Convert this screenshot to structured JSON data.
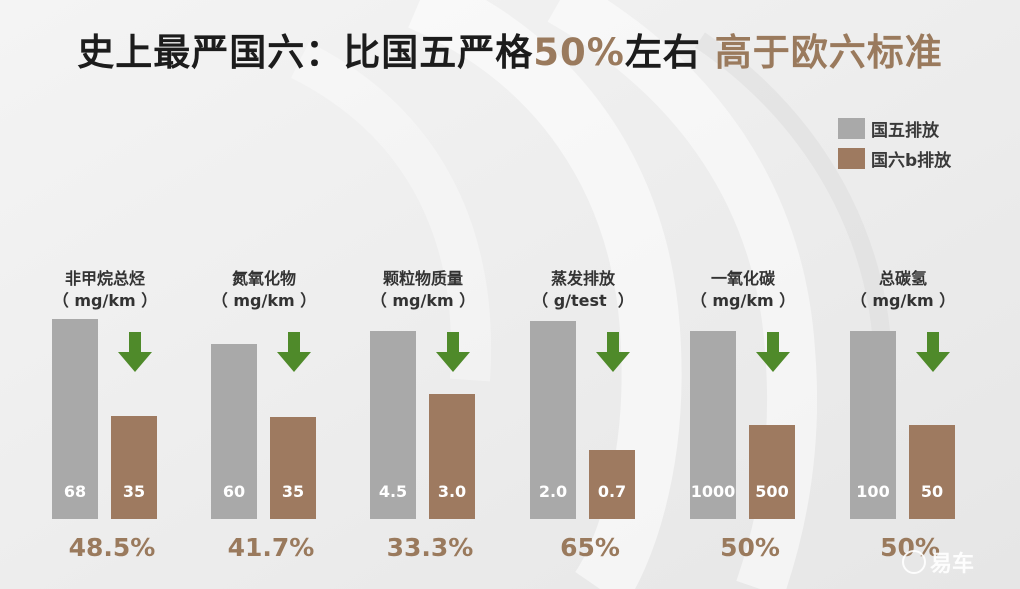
{
  "title": {
    "part1": "史上最严国六：比国五严格",
    "highlight1": "50%",
    "part2": "左右 ",
    "highlight2": "高于欧六标准"
  },
  "colors": {
    "guo5": "#a9a9a9",
    "guo6b": "#9e7a60",
    "arrow": "#4f8a2a",
    "accent": "#9a7a5d"
  },
  "watermark": "易车",
  "chart_data": {
    "type": "bar",
    "legend": [
      "国五排放",
      "国六b排放"
    ],
    "legend_position": "top-right",
    "categories": [
      {
        "name": "非甲烷总烃",
        "unit": "（ mg/km ）",
        "guo5": 68,
        "guo5_label": "68",
        "guo6b": 35,
        "guo6b_label": "35",
        "reduction": "48.5%"
      },
      {
        "name": "氮氧化物",
        "unit": "（ mg/km ）",
        "guo5": 60,
        "guo5_label": "60",
        "guo6b": 35,
        "guo6b_label": "35",
        "reduction": "41.7%"
      },
      {
        "name": "颗粒物质量",
        "unit": "（ mg/km ）",
        "guo5": 4.5,
        "guo5_label": "4.5",
        "guo6b": 3.0,
        "guo6b_label": "3.0",
        "reduction": "33.3%"
      },
      {
        "name": "蒸发排放",
        "unit": "（ g/test  ）",
        "guo5": 2.0,
        "guo5_label": "2.0",
        "guo6b": 0.7,
        "guo6b_label": "0.7",
        "reduction": "65%"
      },
      {
        "name": "一氧化碳",
        "unit": "（ mg/km ）",
        "guo5": 1000,
        "guo5_label": "1000",
        "guo6b": 500,
        "guo6b_label": "500",
        "reduction": "50%"
      },
      {
        "name": "总碳氢",
        "unit": "（ mg/km ）",
        "guo5": 100,
        "guo5_label": "100",
        "guo6b": 50,
        "guo6b_label": "50",
        "reduction": "50%"
      }
    ]
  }
}
